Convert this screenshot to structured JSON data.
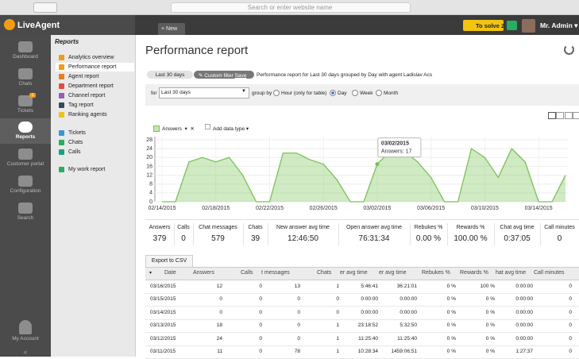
{
  "browser": {
    "address": "Search or enter website name"
  },
  "header": {
    "logo": "LiveAgent",
    "new": "New",
    "to_solve": "To solve",
    "to_solve_count": "2",
    "user": "Mr. Admin"
  },
  "nav": [
    {
      "label": "Dashboard"
    },
    {
      "label": "Chats"
    },
    {
      "label": "Tickets",
      "badge": "1"
    },
    {
      "label": "Reports"
    },
    {
      "label": "Customer portal"
    },
    {
      "label": "Configuration"
    },
    {
      "label": "Search"
    }
  ],
  "account": "My Account",
  "submenu": {
    "title": "Reports",
    "items": [
      "Analytics overview",
      "Performance report",
      "Agent report",
      "Department report",
      "Channel report",
      "Tag report",
      "Ranking agents"
    ],
    "items2": [
      "Tickets",
      "Chats",
      "Calls"
    ],
    "items3": [
      "My work report"
    ],
    "selected": 1
  },
  "page": {
    "title": "Performance report",
    "filter_tab": "Last 30 days",
    "custom_filter": "Custom filter",
    "save": "Save",
    "description": "Performance report for Last 30 days grouped by Day with agent Ladislav Acs",
    "for_label": "for",
    "range": "Last 30 days",
    "group_by": "group by",
    "options": [
      "Hour (only for table)",
      "Day",
      "Week",
      "Month"
    ],
    "selected": 1,
    "metric": "Answers",
    "add_data_type": "Add data type"
  },
  "chart_data": {
    "type": "area",
    "categories": [
      "02/14/2015",
      null,
      null,
      null,
      "02/18/2015",
      null,
      null,
      null,
      "02/22/2015",
      null,
      null,
      null,
      "02/26/2015",
      null,
      null,
      null,
      "03/02/2015",
      null,
      null,
      null,
      "03/06/2015",
      null,
      null,
      null,
      "03/10/2015",
      null,
      null,
      null,
      "03/14/2015",
      null,
      null
    ],
    "series": [
      {
        "name": "Answers",
        "color": "#78c257",
        "values": [
          0,
          0,
          18,
          20,
          18,
          20,
          12,
          0,
          0,
          22,
          22,
          19,
          17,
          10,
          0,
          0,
          17,
          23,
          23,
          18,
          11,
          0,
          0,
          24,
          20,
          11,
          24,
          18,
          0,
          0,
          12
        ]
      }
    ],
    "ylim": [
      0,
      28
    ],
    "yticks": [
      0,
      4,
      8,
      12,
      16,
      20,
      24,
      28
    ],
    "grid": true,
    "tooltip": {
      "index": 16,
      "title": "03/02/2015",
      "text": "Answers: 17"
    }
  },
  "summary": [
    {
      "label": "Answers",
      "value": "379"
    },
    {
      "label": "Calls",
      "value": "0"
    },
    {
      "label": "Chat messages",
      "value": "579"
    },
    {
      "label": "Chats",
      "value": "39"
    },
    {
      "label": "New answer avg time",
      "value": "12:46:50"
    },
    {
      "label": "Open answer avg time",
      "value": "76:31:34"
    },
    {
      "label": "Rebukes %",
      "value": "0.00 %"
    },
    {
      "label": "Rewards %",
      "value": "100.00 %"
    },
    {
      "label": "Chat avg time",
      "value": "0:37:05"
    },
    {
      "label": "Call minutes",
      "value": "0"
    }
  ],
  "export": "Export to CSV",
  "table": {
    "header": [
      "Date",
      "Answers",
      "Calls",
      "t messages",
      "Chats",
      "er avg time",
      "er avg time",
      "Rebukes %",
      "Rewards %",
      "hat avg time",
      "Call minutes"
    ],
    "rows": [
      [
        "03/16/2015",
        "12",
        "0",
        "13",
        "1",
        "5:46:41",
        "36:21:01",
        "0 %",
        "100 %",
        "0:00:00",
        "0"
      ],
      [
        "03/15/2015",
        "0",
        "0",
        "0",
        "0",
        "0:00:00",
        "0:00:00",
        "0 %",
        "0 %",
        "0:00:00",
        "0"
      ],
      [
        "03/14/2015",
        "0",
        "0",
        "0",
        "0",
        "0:00:00",
        "0:00:00",
        "0 %",
        "0 %",
        "0:00:00",
        "0"
      ],
      [
        "03/13/2015",
        "18",
        "0",
        "0",
        "1",
        "23:18:52",
        "5:32:50",
        "0 %",
        "0 %",
        "0:00:00",
        "0"
      ],
      [
        "03/12/2015",
        "24",
        "0",
        "0",
        "1",
        "11:25:40",
        "11:25:40",
        "0 %",
        "0 %",
        "0:00:00",
        "0"
      ],
      [
        "03/11/2015",
        "11",
        "0",
        "78",
        "1",
        "10:28:34",
        "1459:06:51",
        "0 %",
        "0 %",
        "1:27:37",
        "0"
      ]
    ]
  }
}
